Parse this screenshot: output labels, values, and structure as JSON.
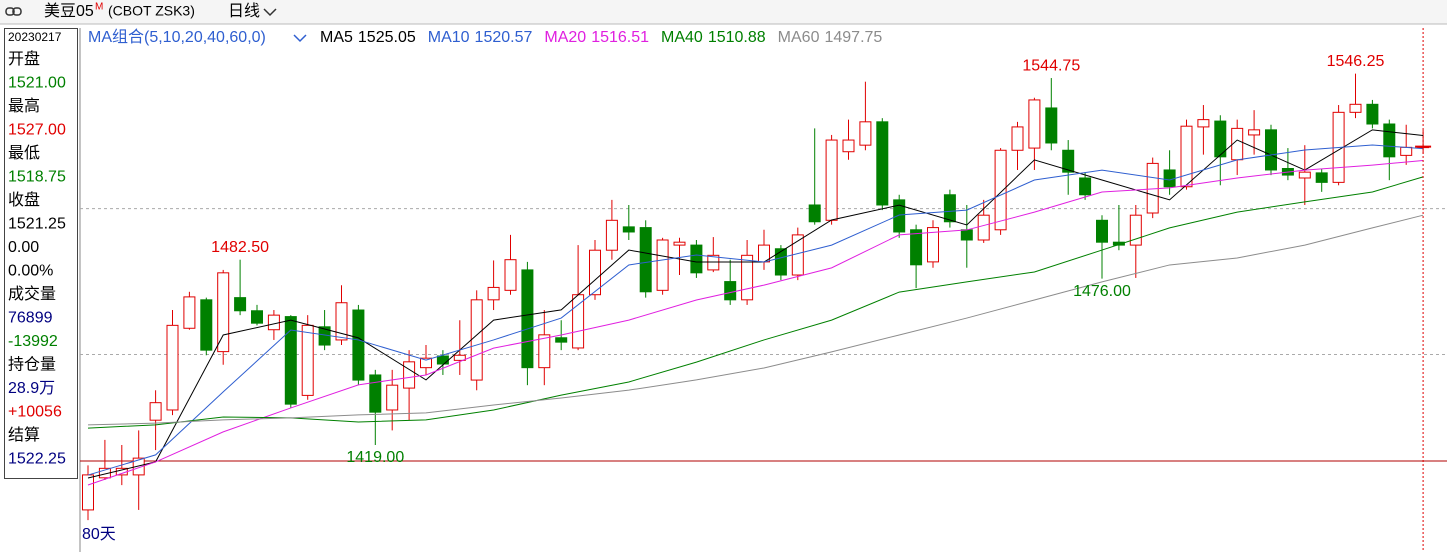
{
  "header": {
    "symbol": "美豆05",
    "flag": "M",
    "code": "(CBOT ZSK3)",
    "period": "日线"
  },
  "info_panel": [
    {
      "text": "20230217",
      "color": "#000000"
    },
    {
      "text": "开盘",
      "color": "#000000"
    },
    {
      "text": "1521.00",
      "color": "#008000"
    },
    {
      "text": "最高",
      "color": "#000000"
    },
    {
      "text": "1527.00",
      "color": "#e00000"
    },
    {
      "text": "最低",
      "color": "#000000"
    },
    {
      "text": "1518.75",
      "color": "#008000"
    },
    {
      "text": "收盘",
      "color": "#000000"
    },
    {
      "text": "1521.25",
      "color": "#000000"
    },
    {
      "text": "0.00",
      "color": "#000000"
    },
    {
      "text": "0.00%",
      "color": "#000000"
    },
    {
      "text": "成交量",
      "color": "#000000"
    },
    {
      "text": "76899",
      "color": "#000080"
    },
    {
      "text": "-13992",
      "color": "#008000"
    },
    {
      "text": "持仓量",
      "color": "#000000"
    },
    {
      "text": "28.9万",
      "color": "#000080"
    },
    {
      "text": "+10056",
      "color": "#e00000"
    },
    {
      "text": "结算",
      "color": "#000000"
    },
    {
      "text": "1522.25",
      "color": "#000080"
    }
  ],
  "chart_data": {
    "type": "candlestick",
    "ma_group_label": "MA组合(5,10,20,40,60,0)",
    "period_label": "80天",
    "up_color": "#e00000",
    "down_color": "#008000",
    "ylim": [
      1383.7,
      1561.9
    ],
    "grid_lines": [
      1500,
      1450
    ],
    "open": [
      1396.75,
      1407.75,
      1408.75,
      1408.75,
      1427.5,
      1431,
      1459,
      1468.75,
      1451,
      1469.5,
      1465,
      1458.5,
      1463,
      1436,
      1459.5,
      1455,
      1465.25,
      1443,
      1431,
      1438.5,
      1445.5,
      1449.5,
      1448,
      1441.25,
      1468.75,
      1472,
      1479,
      1445.5,
      1455.75,
      1452.25,
      1470.5,
      1485.75,
      1493.75,
      1493.5,
      1472,
      1487.5,
      1487.5,
      1479,
      1475,
      1468.75,
      1481.75,
      1486.25,
      1477.25,
      1501.25,
      1496,
      1519.5,
      1521.75,
      1529.75,
      1503,
      1492.75,
      1481.75,
      1504.75,
      1492.75,
      1489.25,
      1492.75,
      1520,
      1520.75,
      1534.5,
      1520,
      1510.5,
      1496,
      1488.5,
      1487.5,
      1498.5,
      1513.25,
      1507.5,
      1528,
      1530,
      1516.75,
      1525.25,
      1527,
      1513.75,
      1510.5,
      1512.25,
      1509,
      1533,
      1535.75,
      1529,
      1518.25,
      1521
    ],
    "high": [
      1412,
      1420.75,
      1419,
      1424,
      1437.75,
      1465.25,
      1471.5,
      1469.5,
      1479,
      1482.5,
      1467,
      1465.25,
      1463.5,
      1463.5,
      1465.25,
      1473.75,
      1467,
      1444.75,
      1444.75,
      1451.5,
      1453.25,
      1451.5,
      1461.75,
      1472,
      1482.25,
      1491,
      1481.75,
      1465.25,
      1461.75,
      1487.5,
      1489.25,
      1503,
      1501.25,
      1496,
      1490,
      1490,
      1489.25,
      1490.25,
      1482.5,
      1489.25,
      1492.75,
      1487.5,
      1493.5,
      1527.5,
      1525.25,
      1530.5,
      1543.5,
      1531,
      1504.75,
      1494.5,
      1496,
      1506.5,
      1501.25,
      1503,
      1520.75,
      1529.75,
      1538,
      1544.75,
      1523.5,
      1512.5,
      1497.75,
      1501.25,
      1501.25,
      1517.5,
      1520,
      1530.5,
      1535.5,
      1532,
      1530.5,
      1533.75,
      1528.75,
      1520.75,
      1521.75,
      1513.75,
      1535.5,
      1546.25,
      1537.25,
      1530.5,
      1528.75,
      1527
    ],
    "low": [
      1393.25,
      1407,
      1405.25,
      1396.75,
      1417.25,
      1429.25,
      1458.5,
      1449.75,
      1446.5,
      1463.5,
      1460,
      1455,
      1431.75,
      1434.5,
      1451.5,
      1453.25,
      1439.5,
      1419,
      1424,
      1427.5,
      1443,
      1443,
      1443,
      1437.75,
      1465.25,
      1470.5,
      1439.5,
      1439.5,
      1451.5,
      1451.5,
      1468.75,
      1482.5,
      1489.25,
      1469.5,
      1470.5,
      1477.25,
      1476.25,
      1478.25,
      1467,
      1467,
      1479,
      1475.5,
      1475.5,
      1494.5,
      1494.5,
      1516.75,
      1520,
      1499.5,
      1490,
      1472.75,
      1479.75,
      1493.5,
      1479.75,
      1488.25,
      1491,
      1513.25,
      1513.25,
      1520,
      1504.75,
      1503,
      1476,
      1485.75,
      1476.25,
      1496.75,
      1504.75,
      1506.5,
      1518.5,
      1508,
      1511.5,
      1518.5,
      1511.5,
      1509.75,
      1501.25,
      1505.75,
      1508,
      1531,
      1527.5,
      1509.75,
      1515,
      1518.75
    ],
    "close": [
      1408.75,
      1411,
      1411,
      1414.5,
      1433.5,
      1460,
      1469.75,
      1451.5,
      1478,
      1465,
      1460.75,
      1463.5,
      1433,
      1460,
      1453.25,
      1467.75,
      1441.25,
      1430.25,
      1439.5,
      1447.5,
      1448.75,
      1446.75,
      1449.75,
      1468.75,
      1473,
      1482.5,
      1445.5,
      1456.75,
      1454.25,
      1470.5,
      1485.75,
      1496,
      1492,
      1471.5,
      1489.25,
      1488.5,
      1478,
      1484,
      1468.75,
      1484,
      1487.5,
      1477.25,
      1491,
      1495.5,
      1523.5,
      1523.5,
      1529.75,
      1501.25,
      1492,
      1480.75,
      1493.5,
      1495.5,
      1489.25,
      1497.75,
      1520,
      1528,
      1537.25,
      1522.5,
      1512.5,
      1504.75,
      1488.5,
      1487.5,
      1497.75,
      1515.5,
      1507.5,
      1528.25,
      1530.5,
      1517.75,
      1527.5,
      1527,
      1513.25,
      1511.5,
      1512.5,
      1509,
      1533,
      1535.75,
      1529,
      1517.75,
      1521,
      1521.25
    ],
    "series": [
      {
        "name": "MA5",
        "color": "#000000",
        "x": [
          0,
          4,
          8,
          12,
          16,
          20,
          24,
          28,
          32,
          36,
          40,
          44,
          48,
          52,
          56,
          60,
          64,
          68,
          72,
          76,
          79
        ],
        "values": [
          1407.7,
          1413.2,
          1456.7,
          1461.8,
          1455.7,
          1441.3,
          1461.8,
          1465.3,
          1485.8,
          1481.7,
          1481.7,
          1496.1,
          1501.2,
          1494.4,
          1516.7,
          1509.8,
          1503.0,
          1523.5,
          1513.2,
          1527.0,
          1525.05
        ]
      },
      {
        "name": "MA10",
        "color": "#2f5fd0",
        "x": [
          0,
          4,
          8,
          12,
          16,
          20,
          24,
          28,
          32,
          36,
          40,
          44,
          48,
          52,
          56,
          60,
          64,
          68,
          72,
          76,
          79
        ],
        "values": [
          1408.7,
          1415.6,
          1437.2,
          1458.4,
          1455.0,
          1448.1,
          1455.0,
          1462.5,
          1480.7,
          1484.1,
          1481.7,
          1487.5,
          1497.8,
          1499.5,
          1509.8,
          1513.2,
          1509.8,
          1516.7,
          1520.1,
          1521.8,
          1520.57
        ]
      },
      {
        "name": "MA20",
        "color": "#e020e0",
        "x": [
          0,
          4,
          8,
          12,
          16,
          20,
          24,
          28,
          32,
          36,
          40,
          44,
          48,
          52,
          56,
          60,
          64,
          68,
          72,
          76,
          79
        ],
        "values": [
          1405.3,
          1413.2,
          1423.5,
          1431.7,
          1439.6,
          1443.0,
          1452.2,
          1456.7,
          1461.8,
          1468.7,
          1473.8,
          1479.7,
          1491.0,
          1492.7,
          1498.8,
          1505.7,
          1507.1,
          1510.5,
          1513.2,
          1514.9,
          1516.51
        ]
      },
      {
        "name": "MA40",
        "color": "#008000",
        "x": [
          0,
          4,
          8,
          12,
          16,
          20,
          24,
          28,
          32,
          36,
          40,
          44,
          48,
          52,
          56,
          60,
          64,
          68,
          72,
          76,
          79
        ],
        "values": [
          1424.8,
          1425.9,
          1428.6,
          1428.3,
          1426.9,
          1427.6,
          1431.0,
          1436.1,
          1440.6,
          1447.4,
          1455.0,
          1461.8,
          1471.4,
          1474.9,
          1478.3,
          1485.8,
          1493.4,
          1498.8,
          1502.3,
          1505.7,
          1510.88
        ]
      },
      {
        "name": "MA60",
        "color": "#8c8c8c",
        "x": [
          0,
          4,
          8,
          12,
          16,
          20,
          24,
          28,
          32,
          36,
          40,
          44,
          48,
          52,
          56,
          60,
          64,
          68,
          72,
          76,
          79
        ],
        "values": [
          1425.9,
          1426.5,
          1427.6,
          1428.3,
          1429.3,
          1430.0,
          1432.7,
          1435.1,
          1437.8,
          1441.3,
          1445.4,
          1450.9,
          1456.7,
          1462.5,
          1468.7,
          1474.9,
          1480.7,
          1483.1,
          1487.5,
          1493.4,
          1497.75
        ]
      }
    ],
    "annotations": [
      {
        "index": 9,
        "value": 1482.5,
        "label": "1482.50"
      },
      {
        "index": 17,
        "value": 1419,
        "label": "1419.00"
      },
      {
        "index": 57,
        "value": 1544.75,
        "label": "1544.75"
      },
      {
        "index": 60,
        "value": 1476,
        "label": "1476.00"
      },
      {
        "index": 75,
        "value": 1546.25,
        "label": "1546.25"
      }
    ]
  }
}
